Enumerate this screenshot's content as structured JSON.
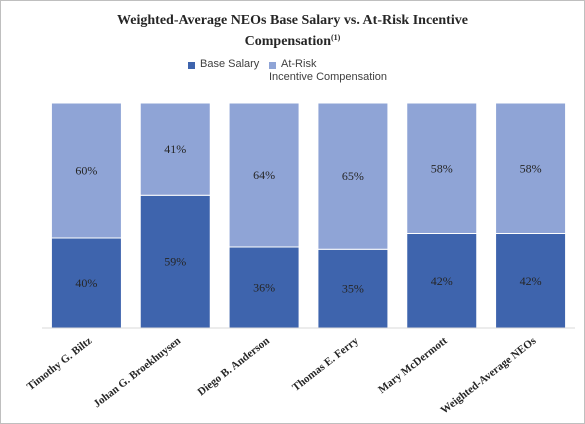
{
  "chart_data": {
    "type": "bar",
    "stacked": true,
    "title": "Weighted-Average NEOs Base Salary vs. At-Risk Incentive Compensation",
    "title_line1": "Weighted-Average NEOs Base Salary vs. At-Risk Incentive",
    "title_line2": "Compensation",
    "title_footnote": "(1)",
    "categories": [
      "Timothy G. Biltz",
      "Johan G. Broekhuysen",
      "Diego B. Anderson",
      "Thomas E. Ferry",
      "Mary McDermott",
      "Weighted-Average NEOs"
    ],
    "series": [
      {
        "name": "Base Salary",
        "color": "#3e64ad",
        "values": [
          40,
          59,
          36,
          35,
          42,
          42
        ],
        "labels": [
          "40%",
          "59%",
          "36%",
          "35%",
          "42%",
          "42%"
        ]
      },
      {
        "name": "At-Risk Incentive Compensation",
        "name_line1": "At-Risk",
        "name_line2": "Incentive Compensation",
        "color": "#8fa4d6",
        "values": [
          60,
          41,
          64,
          65,
          58,
          58
        ],
        "labels": [
          "60%",
          "41%",
          "64%",
          "65%",
          "58%",
          "58%"
        ]
      }
    ],
    "ylim": [
      0,
      100
    ],
    "grid": false,
    "legend_position": "top"
  }
}
